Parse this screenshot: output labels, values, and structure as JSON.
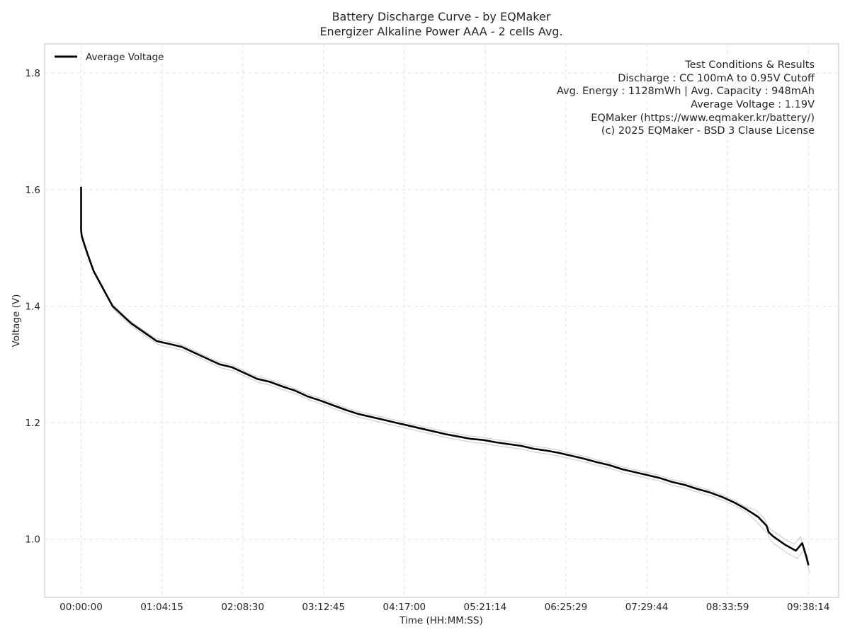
{
  "chart_data": {
    "type": "line",
    "title": "Battery Discharge Curve - by EQMaker",
    "subtitle": "Energizer Alkaline Power AAA - 2 cells Avg.",
    "xlabel": "Time (HH:MM:SS)",
    "ylabel": "Voltage (V)",
    "x_ticks": [
      "00:00:00",
      "01:04:15",
      "02:08:30",
      "03:12:45",
      "04:17:00",
      "05:21:14",
      "06:25:29",
      "07:29:44",
      "08:33:59",
      "09:38:14"
    ],
    "y_ticks": [
      "1.0",
      "1.2",
      "1.4",
      "1.6",
      "1.8"
    ],
    "xlim_seconds": [
      -1740,
      36140
    ],
    "ylim": [
      0.9,
      1.85
    ],
    "grid": true,
    "legend_position": "top-left",
    "legend": [
      "Average Voltage"
    ],
    "series": [
      {
        "name": "Average Voltage",
        "color": "#000000",
        "x_seconds": [
          0,
          0,
          30,
          120,
          300,
          600,
          900,
          1200,
          1500,
          1800,
          2100,
          2400,
          3000,
          3600,
          4200,
          4800,
          5400,
          6000,
          6600,
          7200,
          7800,
          8400,
          9000,
          9600,
          10200,
          10800,
          11400,
          12000,
          12600,
          13200,
          13800,
          14400,
          15000,
          15600,
          16200,
          16800,
          17400,
          18000,
          18600,
          19200,
          19800,
          20400,
          21000,
          21600,
          22200,
          22800,
          23400,
          24000,
          24600,
          25200,
          25800,
          26400,
          27000,
          27600,
          28200,
          28800,
          29400,
          30000,
          30600,
          31200,
          31700,
          32300,
          32700,
          32800,
          33000,
          33600,
          34100,
          34400,
          34600,
          34700
        ],
        "y": [
          1.605,
          1.53,
          1.52,
          1.51,
          1.49,
          1.46,
          1.44,
          1.42,
          1.4,
          1.39,
          1.38,
          1.37,
          1.355,
          1.34,
          1.335,
          1.33,
          1.32,
          1.31,
          1.3,
          1.295,
          1.285,
          1.275,
          1.27,
          1.262,
          1.255,
          1.245,
          1.238,
          1.23,
          1.222,
          1.215,
          1.21,
          1.205,
          1.2,
          1.195,
          1.19,
          1.185,
          1.18,
          1.176,
          1.172,
          1.17,
          1.166,
          1.163,
          1.16,
          1.155,
          1.152,
          1.148,
          1.143,
          1.138,
          1.132,
          1.127,
          1.12,
          1.115,
          1.11,
          1.105,
          1.098,
          1.093,
          1.086,
          1.08,
          1.072,
          1.062,
          1.052,
          1.038,
          1.023,
          1.012,
          1.005,
          0.99,
          0.98,
          0.993,
          0.97,
          0.955
        ]
      }
    ],
    "annotations": [
      "Test Conditions & Results",
      "Discharge : CC 100mA to 0.95V Cutoff",
      "Avg. Energy : 1128mWh | Avg. Capacity : 948mAh",
      "Average Voltage : 1.19V",
      "EQMaker (https://www.eqmaker.kr/battery/)",
      "(c) 2025 EQMaker - BSD 3 Clause License"
    ],
    "colors": {
      "line": "#000000",
      "cell_traces": "#d0d0d0",
      "grid": "#e4e4e4",
      "frame": "#cccccc",
      "text": "#262626"
    }
  }
}
